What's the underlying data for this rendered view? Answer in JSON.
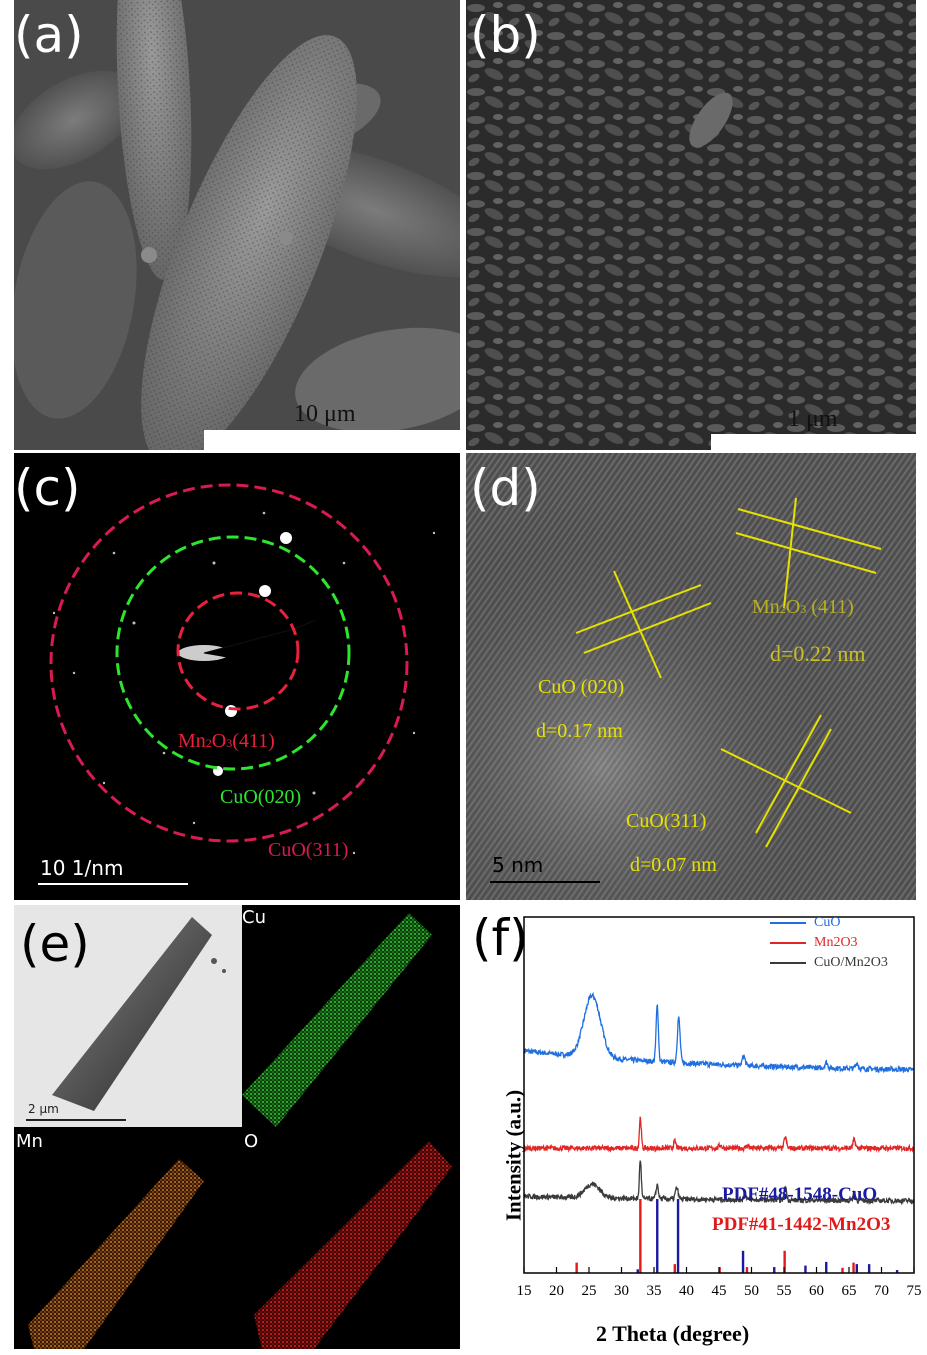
{
  "panels": {
    "a": {
      "label": "(a)",
      "scale": "10 μm"
    },
    "b": {
      "label": "(b)",
      "scale": "1 μm"
    },
    "c": {
      "label": "(c)",
      "scale": "10 1/nm",
      "rings": [
        {
          "name": "Mn2O3-411",
          "label_main": "Mn",
          "label_sub1": "2",
          "label_mid": "O",
          "label_sub2": "3",
          "label_tail": "(411)",
          "color": "#e8213d"
        },
        {
          "name": "CuO-020",
          "label": "CuO(020)",
          "color": "#2ee52e"
        },
        {
          "name": "CuO-311",
          "label": "CuO(311)",
          "color": "#d81b50"
        }
      ]
    },
    "d": {
      "label": "(d)",
      "scale": "5  nm",
      "fringes": [
        {
          "plane_main": "Mn",
          "plane_sub1": "2",
          "plane_mid": "O",
          "plane_sub2": "3",
          "plane_tail": " (411)",
          "spacing": "d=0.22 nm"
        },
        {
          "plane": "CuO (020)",
          "spacing": "d=0.17 nm"
        },
        {
          "plane": "CuO(311)",
          "spacing": "d=0.07 nm"
        }
      ],
      "color": "#e6e200"
    },
    "e": {
      "label": "(e)",
      "scale": "2  μm",
      "maps": [
        {
          "element": "Cu",
          "color": "#22c322"
        },
        {
          "element": "Mn",
          "color": "#e08a2a"
        },
        {
          "element": "O",
          "color": "#d41818"
        }
      ]
    },
    "f": {
      "label": "(f)"
    }
  },
  "chart_data": {
    "type": "line",
    "panel": "(f)",
    "xlabel": "2 Theta (degree)",
    "ylabel": "Intensity  (a.u.)",
    "xlim": [
      15,
      75
    ],
    "xticks": [
      15,
      20,
      25,
      30,
      35,
      40,
      45,
      50,
      55,
      60,
      65,
      70,
      75
    ],
    "legend_position": "top-right",
    "series": [
      {
        "name": "CuO",
        "color": "#1f6fe0",
        "peaks": [
          {
            "x": 25.5,
            "h": 2.2,
            "w": 1.8
          },
          {
            "x": 35.5,
            "h": 2.0,
            "w": 0.25
          },
          {
            "x": 38.8,
            "h": 1.6,
            "w": 0.3
          },
          {
            "x": 48.8,
            "h": 0.35,
            "w": 0.3
          },
          {
            "x": 61.5,
            "h": 0.2,
            "w": 0.3
          },
          {
            "x": 66.2,
            "h": 0.2,
            "w": 0.3
          }
        ],
        "baseline": 2.6,
        "offset": 7.3
      },
      {
        "name": "Mn2O3",
        "color": "#e22626",
        "peaks": [
          {
            "x": 32.9,
            "h": 1.1,
            "w": 0.2
          },
          {
            "x": 38.2,
            "h": 0.25,
            "w": 0.25
          },
          {
            "x": 45.2,
            "h": 0.12,
            "w": 0.3
          },
          {
            "x": 49.4,
            "h": 0.1,
            "w": 0.3
          },
          {
            "x": 55.2,
            "h": 0.4,
            "w": 0.25
          },
          {
            "x": 65.8,
            "h": 0.3,
            "w": 0.25
          }
        ],
        "baseline": 0.0,
        "offset": 4.6
      },
      {
        "name": "CuO/Mn2O3",
        "color": "#3a3a3a",
        "peaks": [
          {
            "x": 25.5,
            "h": 0.5,
            "w": 1.6
          },
          {
            "x": 32.9,
            "h": 1.4,
            "w": 0.2
          },
          {
            "x": 35.5,
            "h": 0.5,
            "w": 0.25
          },
          {
            "x": 38.5,
            "h": 0.4,
            "w": 0.3
          },
          {
            "x": 49.0,
            "h": 0.2,
            "w": 0.3
          },
          {
            "x": 55.2,
            "h": 0.5,
            "w": 0.25
          },
          {
            "x": 65.8,
            "h": 0.3,
            "w": 0.25
          }
        ],
        "baseline": 0.6,
        "offset": 2.7
      }
    ],
    "references": [
      {
        "name": "PDF#48-1548-CuO",
        "color": "#1a1aa0",
        "lines": [
          [
            32.5,
            0.05
          ],
          [
            35.5,
            1.0
          ],
          [
            38.7,
            1.0
          ],
          [
            48.7,
            0.3
          ],
          [
            53.5,
            0.08
          ],
          [
            58.3,
            0.1
          ],
          [
            61.5,
            0.15
          ],
          [
            66.2,
            0.12
          ],
          [
            68.1,
            0.12
          ],
          [
            72.4,
            0.04
          ]
        ]
      },
      {
        "name": "PDF#41-1442-Mn2O3",
        "color": "#e21a1a",
        "lines": [
          [
            23.1,
            0.14
          ],
          [
            32.9,
            1.0
          ],
          [
            38.2,
            0.12
          ],
          [
            45.1,
            0.08
          ],
          [
            49.3,
            0.08
          ],
          [
            55.1,
            0.3
          ],
          [
            64.0,
            0.07
          ],
          [
            65.7,
            0.14
          ]
        ]
      }
    ]
  }
}
